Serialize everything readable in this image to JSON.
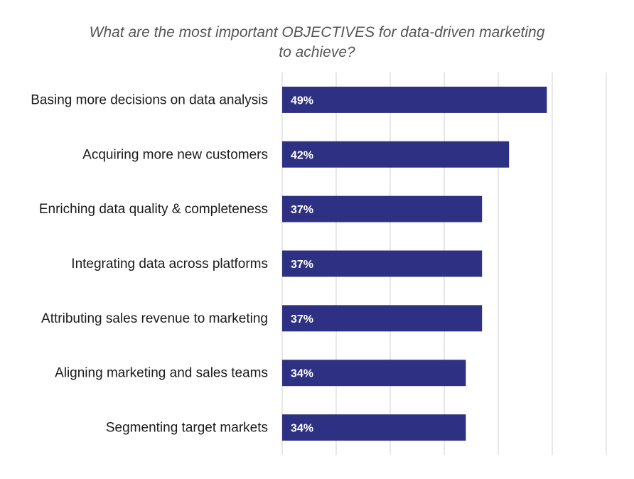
{
  "chart_data": {
    "type": "bar",
    "orientation": "horizontal",
    "title_lines": [
      "What are the most important OBJECTIVES for data-driven marketing",
      "to achieve?"
    ],
    "categories": [
      "Basing more decisions on data analysis",
      "Acquiring more new customers",
      "Enriching data quality & completeness",
      "Integrating data across platforms",
      "Attributing sales revenue to marketing",
      "Aligning marketing and sales teams",
      "Segmenting target markets"
    ],
    "values": [
      49,
      42,
      37,
      37,
      37,
      34,
      34
    ],
    "data_labels": [
      "49%",
      "42%",
      "37%",
      "37%",
      "37%",
      "34%",
      "34%"
    ],
    "xlim": [
      0,
      60
    ],
    "grid": true,
    "legend": "none",
    "bar_color": "#2e3183",
    "gridline_color": "#d9d9d9"
  }
}
